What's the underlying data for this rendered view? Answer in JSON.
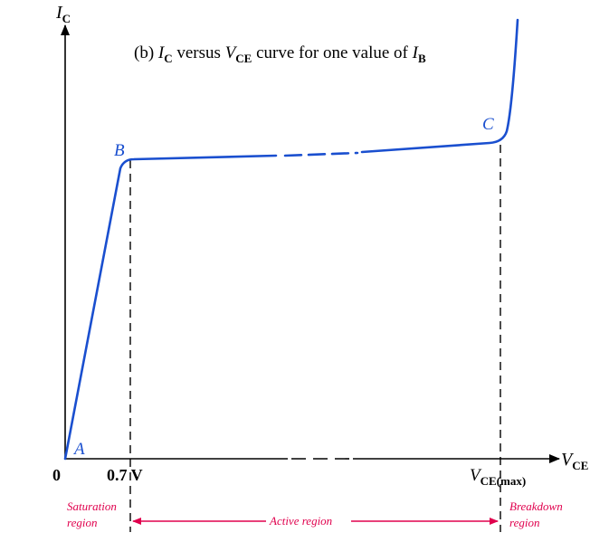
{
  "title": {
    "prefix": "(b) ",
    "ic": "I",
    "ic_sub": "C",
    "mid": " versus ",
    "vce": "V",
    "vce_sub": "CE",
    "suffix": " curve for one value of ",
    "ib": "I",
    "ib_sub": "B"
  },
  "y_axis": {
    "main": "I",
    "sub": "C"
  },
  "x_axis": {
    "main": "V",
    "sub": "CE"
  },
  "points": {
    "a": "A",
    "b": "B",
    "c": "C"
  },
  "ticks": {
    "origin": "0",
    "knee": "0.7 V",
    "vmax_main": "V",
    "vmax_sub": "CE(max)"
  },
  "regions": {
    "saturation_line1": "Saturation",
    "saturation_line2": "region",
    "active": "Active region",
    "breakdown_line1": "Breakdown",
    "breakdown_line2": "region"
  },
  "colors": {
    "curve": "#1a4fcf",
    "region_text": "#e0004d",
    "axes": "#000000"
  }
}
